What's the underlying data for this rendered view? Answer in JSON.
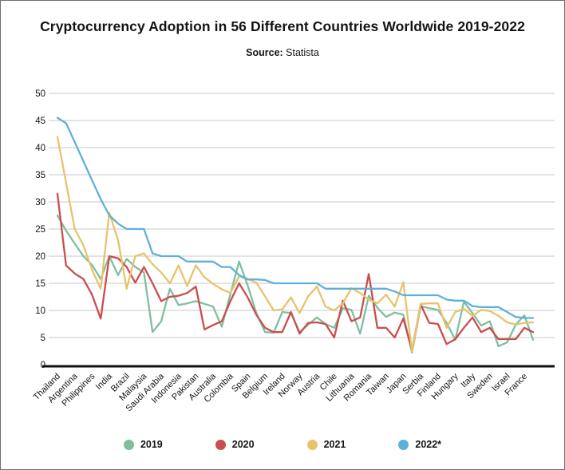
{
  "title": "Cryptocurrency Adoption in 56 Different Countries Worldwide 2019-2022",
  "source_label": "Source:",
  "source_value": "Statista",
  "chart_data": {
    "type": "line",
    "title": "Cryptocurrency Adoption in 56 Different Countries Worldwide 2019-2022",
    "subtitle": "Source: Statista",
    "xlabel": "",
    "ylabel": "",
    "ylim": [
      0,
      50
    ],
    "y_ticks": [
      0,
      5,
      10,
      15,
      20,
      25,
      30,
      35,
      40,
      45,
      50
    ],
    "grid": true,
    "legend_position": "bottom",
    "n_points": 56,
    "x_labels_every": 2,
    "x_labels": [
      "Thailand",
      "Argentina",
      "Philippines",
      "India",
      "Brazil",
      "Malaysia",
      "Saudi Arabia",
      "Indonesia",
      "Pakistan",
      "Australia",
      "Colombia",
      "Spain",
      "Belgium",
      "Ireland",
      "Norway",
      "Austria",
      "Chile",
      "Lithuania",
      "Romania",
      "Taiwan",
      "Japan",
      "Serbia",
      "Finland",
      "Hungary",
      "Italy",
      "Sweden",
      "Israel",
      "France"
    ],
    "series": [
      {
        "name": "2019",
        "color": "#7fbf9f",
        "values": [
          27.5,
          24.7,
          22.3,
          20,
          18.4,
          15.8,
          20,
          16.5,
          19.5,
          18,
          17,
          6,
          8,
          14,
          11,
          11.3,
          11.7,
          11.2,
          10.7,
          7,
          13,
          19,
          14.6,
          9.5,
          6,
          5.9,
          9.7,
          9.5,
          6,
          7.4,
          8.7,
          7.5,
          6.8,
          10.4,
          10.1,
          5.7,
          12.7,
          10.5,
          8.8,
          9.6,
          9.2,
          2.2,
          10.8,
          10.4,
          10.1,
          7.7,
          4.6,
          11.6,
          9.5,
          7.2,
          8,
          3.4,
          4.1,
          7.4,
          9.1,
          4.6
        ]
      },
      {
        "name": "2020",
        "color": "#cb4d4d",
        "values": [
          31.5,
          18.3,
          16.8,
          15.8,
          12.9,
          8.5,
          20,
          19.6,
          18,
          15.1,
          18,
          15,
          11.7,
          12.5,
          12.7,
          13.2,
          14.4,
          6.5,
          7.3,
          8,
          11.7,
          15,
          12.4,
          9.2,
          6.8,
          6,
          6,
          9.7,
          5.7,
          7.7,
          7.8,
          7.5,
          5,
          11.8,
          8,
          8.7,
          16.7,
          6.8,
          6.8,
          5,
          8.5,
          2.6,
          11.1,
          7.7,
          7.5,
          3.8,
          4.7,
          6.8,
          8.7,
          6,
          6.8,
          4.7,
          4.7,
          4.7,
          6.8,
          6
        ]
      },
      {
        "name": "2021",
        "color": "#e8c36a",
        "values": [
          42,
          33.5,
          25,
          22,
          17.5,
          14,
          28,
          23,
          14,
          20,
          20.5,
          18.5,
          17,
          15,
          18.3,
          14.5,
          18.3,
          16.1,
          14.9,
          13.9,
          13.2,
          16.3,
          15.8,
          15.1,
          12.6,
          10,
          10.2,
          12.4,
          9.5,
          12.6,
          14.4,
          10.7,
          10,
          11.3,
          14.1,
          13.2,
          12,
          11.3,
          12.9,
          10.7,
          15.2,
          2.4,
          11.2,
          11.3,
          11.3,
          6.8,
          9.7,
          10.3,
          9,
          10.1,
          9.9,
          9,
          7.8,
          7.4,
          7.7,
          7.8
        ]
      },
      {
        "name": "2022*",
        "color": "#5fb0d9",
        "values": [
          45.5,
          44.5,
          41,
          37.5,
          34,
          30.5,
          27.5,
          26,
          25,
          25,
          25,
          20.5,
          20,
          20,
          20,
          19,
          19,
          19,
          19,
          18,
          18,
          16.5,
          15.7,
          15.7,
          15.6,
          15,
          15,
          15,
          15,
          15,
          15,
          14,
          14,
          14,
          14,
          14,
          14,
          14,
          14,
          13.5,
          12.8,
          12.8,
          12.8,
          12.8,
          12.8,
          12,
          11.8,
          11.8,
          10.8,
          10.6,
          10.6,
          10.6,
          9.7,
          8.8,
          8.6,
          8.6
        ]
      }
    ],
    "colors": {
      "grid": "#c9c9c9",
      "axis": "#111111",
      "text": "#141414"
    }
  }
}
